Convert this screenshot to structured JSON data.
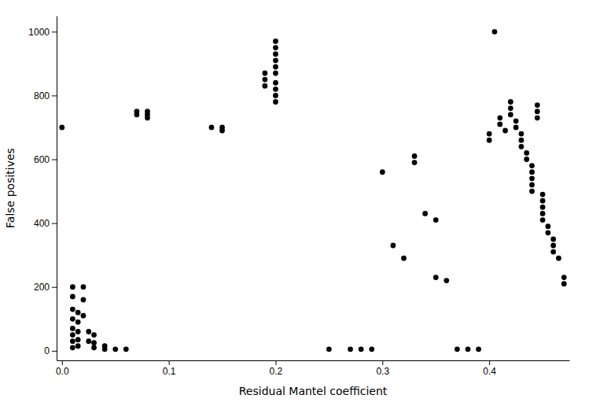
{
  "chart_data": {
    "type": "scatter",
    "x": [
      0.0,
      0.01,
      0.01,
      0.01,
      0.01,
      0.01,
      0.01,
      0.01,
      0.01,
      0.015,
      0.015,
      0.015,
      0.015,
      0.015,
      0.02,
      0.02,
      0.02,
      0.025,
      0.025,
      0.03,
      0.03,
      0.03,
      0.04,
      0.04,
      0.05,
      0.06,
      0.07,
      0.07,
      0.08,
      0.08,
      0.08,
      0.14,
      0.15,
      0.15,
      0.19,
      0.19,
      0.19,
      0.2,
      0.2,
      0.2,
      0.2,
      0.2,
      0.2,
      0.2,
      0.2,
      0.2,
      0.2,
      0.25,
      0.27,
      0.28,
      0.29,
      0.3,
      0.31,
      0.32,
      0.33,
      0.33,
      0.34,
      0.35,
      0.35,
      0.36,
      0.37,
      0.38,
      0.39,
      0.4,
      0.4,
      0.405,
      0.41,
      0.41,
      0.415,
      0.42,
      0.42,
      0.42,
      0.425,
      0.425,
      0.43,
      0.43,
      0.43,
      0.435,
      0.435,
      0.44,
      0.44,
      0.44,
      0.44,
      0.44,
      0.445,
      0.445,
      0.445,
      0.45,
      0.45,
      0.45,
      0.45,
      0.45,
      0.455,
      0.455,
      0.46,
      0.46,
      0.46,
      0.465,
      0.47,
      0.47
    ],
    "values": [
      700,
      200,
      170,
      130,
      100,
      70,
      50,
      30,
      10,
      120,
      90,
      60,
      35,
      15,
      200,
      160,
      110,
      60,
      30,
      50,
      25,
      10,
      15,
      5,
      5,
      5,
      750,
      740,
      750,
      740,
      730,
      700,
      700,
      690,
      870,
      850,
      830,
      970,
      950,
      930,
      910,
      890,
      870,
      840,
      820,
      800,
      780,
      5,
      5,
      5,
      5,
      560,
      330,
      290,
      610,
      590,
      430,
      410,
      230,
      220,
      5,
      5,
      5,
      680,
      660,
      1000,
      730,
      710,
      690,
      780,
      760,
      740,
      720,
      700,
      680,
      660,
      640,
      620,
      600,
      580,
      560,
      540,
      520,
      500,
      770,
      750,
      730,
      490,
      470,
      450,
      430,
      410,
      390,
      370,
      350,
      330,
      310,
      290,
      230,
      210
    ],
    "xlabel": "Residual Mantel coefficient",
    "ylabel": "False positives",
    "xlim": [
      -0.005,
      0.475
    ],
    "ylim": [
      -30,
      1050
    ],
    "xticks": [
      {
        "value": 0.0,
        "label": "0.0"
      },
      0.1,
      0.2,
      0.3,
      0.4
    ],
    "yticks": [
      0,
      200,
      400,
      600,
      800,
      1000
    ],
    "color": "#000000",
    "marker": "circle"
  }
}
